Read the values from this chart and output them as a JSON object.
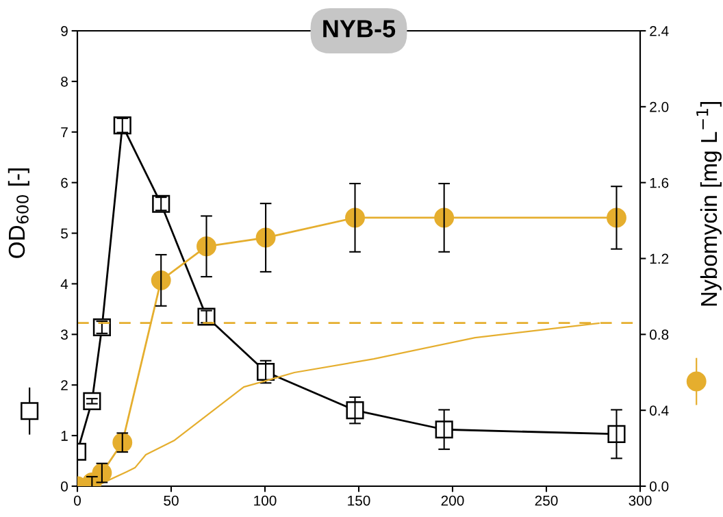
{
  "chart_data": {
    "type": "line",
    "title": "NYB-5",
    "ylabel": "OD$_{600}$ [-]",
    "y2label": "Nybomycin [mg L$^{−1}$]",
    "xlim": [
      0,
      300
    ],
    "xticks": [
      0,
      50,
      100,
      150,
      200,
      250,
      300
    ],
    "ylim": [
      0,
      9
    ],
    "yticks": [
      0,
      1,
      2,
      3,
      4,
      5,
      6,
      7,
      8,
      9
    ],
    "y2lim": [
      0,
      2.4
    ],
    "y2ticks": [
      {
        "value": 0,
        "label": "0.0"
      },
      {
        "value": 0.4,
        "label": "0.4"
      },
      {
        "value": 0.8,
        "label": "0.8"
      },
      {
        "value": 1.2,
        "label": "1.2"
      },
      {
        "value": 1.6,
        "label": "1.6"
      },
      {
        "value": 2.0,
        "label": "2.0"
      },
      {
        "value": 2.4,
        "label": "2.4"
      }
    ],
    "grid": false,
    "legend": false,
    "series": [
      {
        "color": "#000000",
        "marker": "square",
        "x": [
          0,
          7.8,
          13.1,
          24,
          44.6,
          68.8,
          100.4,
          148,
          195.5,
          287.4
        ],
        "values": [
          0.68,
          1.68,
          3.14,
          7.13,
          5.58,
          3.35,
          2.26,
          1.5,
          1.12,
          1.03
        ],
        "errors": [
          null,
          0.05,
          0.12,
          0.14,
          0.13,
          0.12,
          0.22,
          0.26,
          0.39,
          0.48
        ]
      },
      {
        "color": "#e5ae2e",
        "marker": "circle",
        "axis": "y2",
        "x": [
          0,
          7.8,
          13.1,
          24,
          44.6,
          68.8,
          100.4,
          148,
          195.5,
          287.4
        ],
        "values": [
          0,
          0.02,
          0.07,
          0.23,
          1.085,
          1.264,
          1.31,
          1.415,
          1.415,
          1.415
        ],
        "errors": [
          null,
          0.03,
          0.05,
          0.05,
          0.135,
          0.16,
          0.18,
          0.18,
          0.18,
          0.165
        ]
      },
      {
        "color": "#e5ae2e",
        "marker": "none",
        "axis": "y2",
        "x": [
          0,
          12.8,
          26.3,
          30.7,
          36.5,
          51.8,
          88.7,
          100.7,
          115.7,
          158,
          212,
          278
        ],
        "values": [
          0,
          0.014,
          0.076,
          0.097,
          0.166,
          0.242,
          0.523,
          0.556,
          0.599,
          0.671,
          0.783,
          0.859
        ]
      }
    ],
    "ref_lines": [
      {
        "axis": "y2",
        "value": 0.86,
        "color": "#e5ae2e",
        "line_style": "dashed"
      }
    ]
  }
}
